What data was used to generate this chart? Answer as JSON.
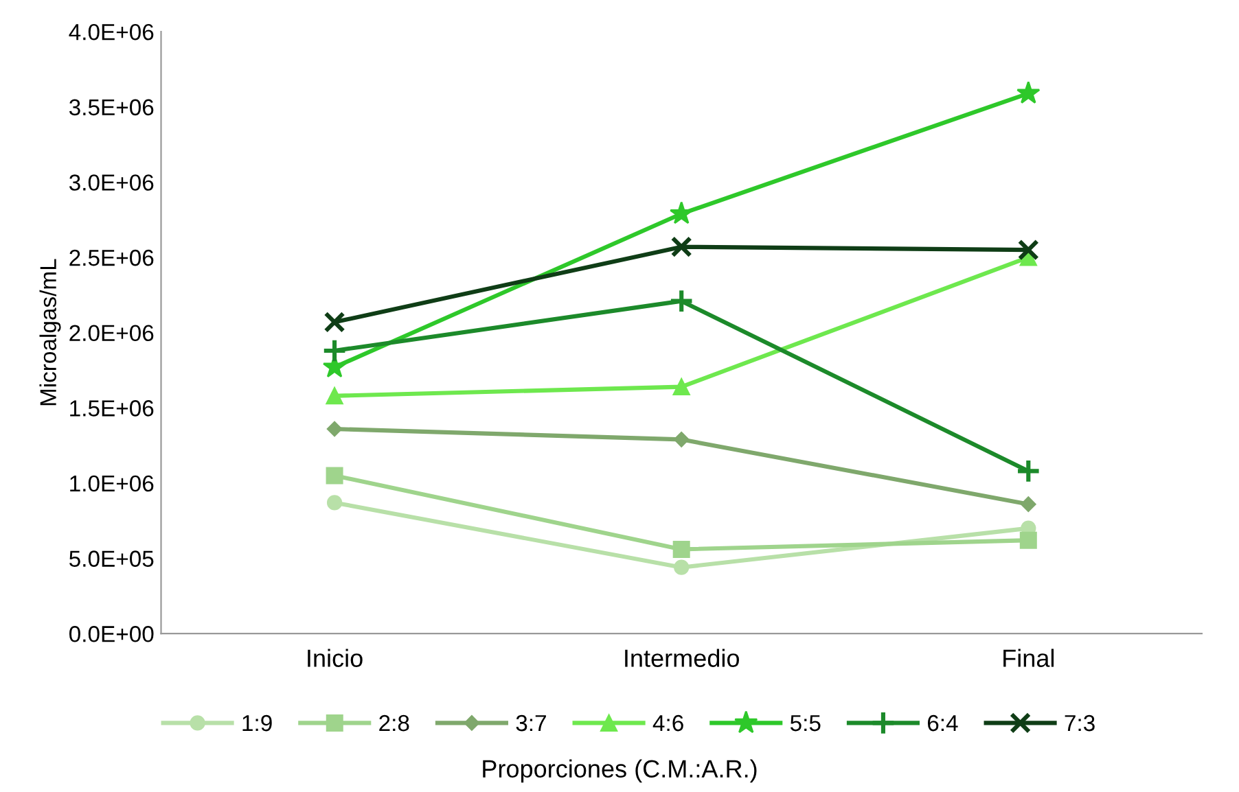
{
  "chart_data": {
    "type": "line",
    "ylabel": "Microalgas/mL",
    "legend_title": "Proporciones (C.M.:A.R.)",
    "categories": [
      "Inicio",
      "Intermedio",
      "Final"
    ],
    "ylim": [
      0,
      4000000
    ],
    "yticks": [
      {
        "value": 0,
        "label": "0.0E+00"
      },
      {
        "value": 500000,
        "label": "5.0E+05"
      },
      {
        "value": 1000000,
        "label": "1.0E+06"
      },
      {
        "value": 1500000,
        "label": "1.5E+06"
      },
      {
        "value": 2000000,
        "label": "2.0E+06"
      },
      {
        "value": 2500000,
        "label": "2.5E+06"
      },
      {
        "value": 3000000,
        "label": "3.0E+06"
      },
      {
        "value": 3500000,
        "label": "3.5E+06"
      },
      {
        "value": 4000000,
        "label": "4.0E+06"
      }
    ],
    "grid": false,
    "legend": "bottom",
    "series": [
      {
        "name": "1:9",
        "color": "#b8e0a8",
        "marker": "circle",
        "values": [
          870000,
          440000,
          700000
        ]
      },
      {
        "name": "2:8",
        "color": "#9fd48c",
        "marker": "square",
        "values": [
          1050000,
          560000,
          620000
        ]
      },
      {
        "name": "3:7",
        "color": "#7fa86c",
        "marker": "diamond",
        "values": [
          1360000,
          1290000,
          860000
        ]
      },
      {
        "name": "4:6",
        "color": "#6ee84e",
        "marker": "triangle",
        "values": [
          1580000,
          1640000,
          2500000
        ]
      },
      {
        "name": "5:5",
        "color": "#2ec82a",
        "marker": "star",
        "values": [
          1770000,
          2790000,
          3590000
        ]
      },
      {
        "name": "6:4",
        "color": "#1c8a2a",
        "marker": "plus",
        "values": [
          1880000,
          2210000,
          1080000
        ]
      },
      {
        "name": "7:3",
        "color": "#0f3d16",
        "marker": "cross",
        "values": [
          2070000,
          2570000,
          2550000
        ]
      }
    ]
  }
}
